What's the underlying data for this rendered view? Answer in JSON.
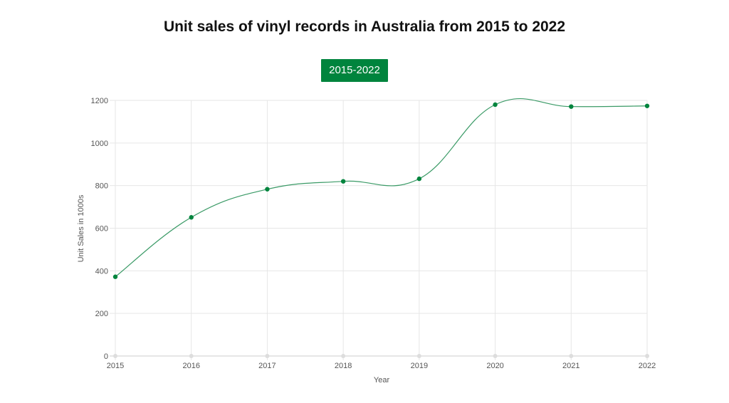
{
  "chart_data": {
    "type": "line",
    "title": "Unit sales of vinyl records in Australia from 2015 to 2022",
    "legend_label": "2015-2022",
    "xlabel": "Year",
    "ylabel": "Unit Sales in 1000s",
    "categories": [
      "2015",
      "2016",
      "2017",
      "2018",
      "2019",
      "2020",
      "2021",
      "2022"
    ],
    "series": [
      {
        "name": "2015-2022",
        "values": [
          372,
          651,
          783,
          820,
          832,
          1180,
          1171,
          1174
        ]
      }
    ],
    "ylim": [
      0,
      1200
    ],
    "yticks": [
      "0",
      "200",
      "400",
      "600",
      "800",
      "1000",
      "1200"
    ],
    "grid": true,
    "legend_position": "top-center",
    "colors": {
      "series": "#00843d",
      "line": "#3a9a66",
      "grid": "#e6e6e6",
      "axis": "#cccccc"
    }
  }
}
